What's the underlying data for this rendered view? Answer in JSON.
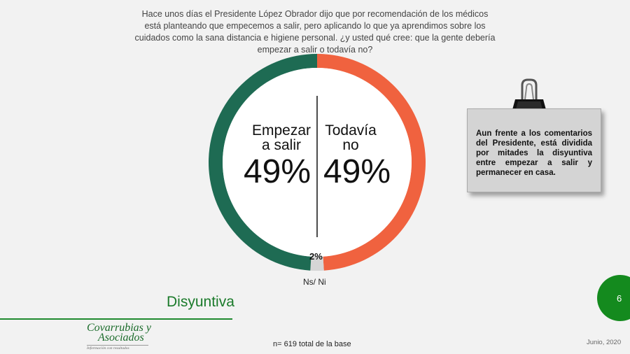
{
  "question": "Hace unos días el Presidente López Obrador dijo que por recomendación de los médicos está planteando que empecemos a salir, pero aplicando lo que ya aprendimos sobre los cuidados como la sana distancia e higiene personal. ¿y usted qué cree: que la gente debería empezar a salir o todavía no?",
  "chart_data": {
    "type": "pie",
    "donut": true,
    "categories": [
      "Todavía no",
      "Ns/ Ni",
      "Empezar a salir"
    ],
    "values": [
      49,
      2,
      49
    ],
    "value_labels": [
      "49%",
      "2%",
      "49%"
    ],
    "category_labels": {
      "empezar_line1": "Empezar",
      "empezar_line2": "a salir",
      "todavia_line1": "Todavía",
      "todavia_line2": "no",
      "ns": "Ns/ Ni"
    },
    "colors": [
      "#f0623f",
      "#d6d6d6",
      "#1e6b53"
    ]
  },
  "note": "Aun frente a los comentarios del Presidente, está dividida por mitades la disyuntiva entre empezar a salir y permanecer en casa.",
  "section_title": "Disyuntiva",
  "page_number": "6",
  "logo": {
    "line1": "Covarrubias y",
    "line2": "Asociados",
    "tagline": "Información con resultados"
  },
  "footnote": "n= 619 total de la base",
  "date": "Junio, 2020",
  "colors": {
    "accent_green": "#148a1e",
    "title_green": "#1a7a2a"
  }
}
